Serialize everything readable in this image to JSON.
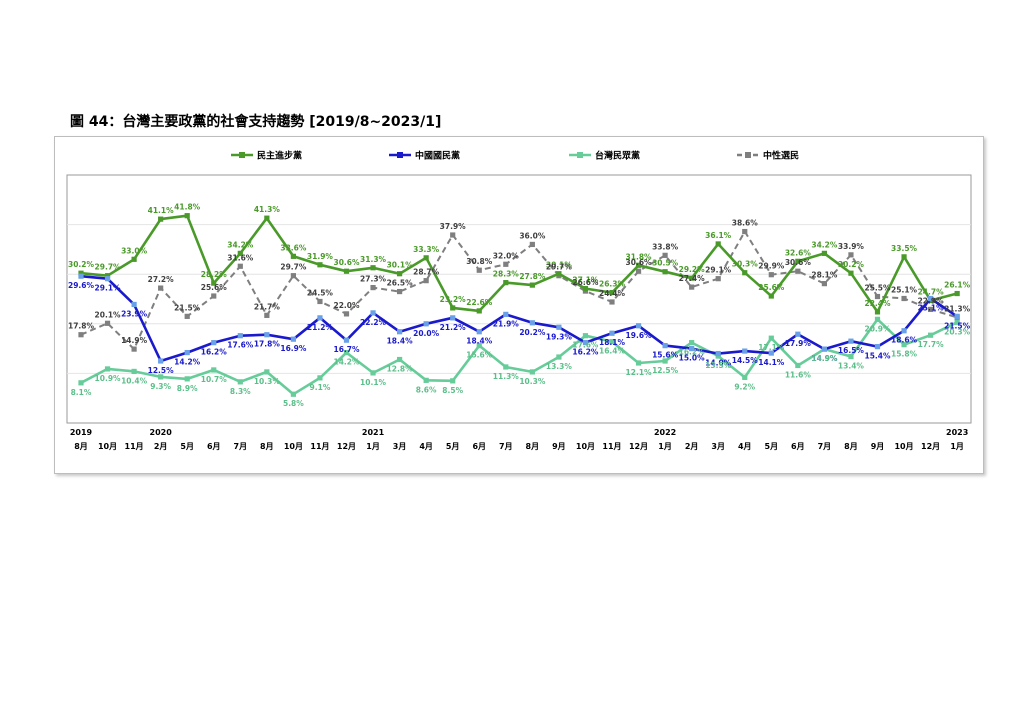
{
  "figure_title": "圖 44：台灣主要政黨的社會支持趨勢 [2019/8~2023/1]",
  "chart_data": {
    "type": "line",
    "categories": [
      {
        "year": "2019",
        "month": "8月"
      },
      {
        "year": "",
        "month": "10月"
      },
      {
        "year": "",
        "month": "11月"
      },
      {
        "year": "2020",
        "month": "2月"
      },
      {
        "year": "",
        "month": "5月"
      },
      {
        "year": "",
        "month": "6月"
      },
      {
        "year": "",
        "month": "7月"
      },
      {
        "year": "",
        "month": "8月"
      },
      {
        "year": "",
        "month": "10月"
      },
      {
        "year": "",
        "month": "11月"
      },
      {
        "year": "",
        "month": "12月"
      },
      {
        "year": "2021",
        "month": "1月"
      },
      {
        "year": "",
        "month": "3月"
      },
      {
        "year": "",
        "month": "4月"
      },
      {
        "year": "",
        "month": "5月"
      },
      {
        "year": "",
        "month": "6月"
      },
      {
        "year": "",
        "month": "7月"
      },
      {
        "year": "",
        "month": "8月"
      },
      {
        "year": "",
        "month": "9月"
      },
      {
        "year": "",
        "month": "10月"
      },
      {
        "year": "",
        "month": "11月"
      },
      {
        "year": "",
        "month": "12月"
      },
      {
        "year": "2022",
        "month": "1月"
      },
      {
        "year": "",
        "month": "2月"
      },
      {
        "year": "",
        "month": "3月"
      },
      {
        "year": "",
        "month": "4月"
      },
      {
        "year": "",
        "month": "5月"
      },
      {
        "year": "",
        "month": "6月"
      },
      {
        "year": "",
        "month": "7月"
      },
      {
        "year": "",
        "month": "8月"
      },
      {
        "year": "",
        "month": "9月"
      },
      {
        "year": "",
        "month": "10月"
      },
      {
        "year": "",
        "month": "12月"
      },
      {
        "year": "2023",
        "month": "1月"
      }
    ],
    "ylim": [
      0,
      50
    ],
    "grid": true,
    "legend_position": "top",
    "series": [
      {
        "name": "民主進步黨",
        "color": "#4a9a2a",
        "dash": "solid",
        "values": [
          30.2,
          29.7,
          33.0,
          41.1,
          41.8,
          28.2,
          34.2,
          41.3,
          33.6,
          31.9,
          30.6,
          31.3,
          30.1,
          33.3,
          23.2,
          22.6,
          28.3,
          27.8,
          30.1,
          27.1,
          26.3,
          31.8,
          30.5,
          29.2,
          36.1,
          30.3,
          25.6,
          32.6,
          34.2,
          30.2,
          22.4,
          33.5,
          24.7,
          26.1
        ],
        "labels": [
          "30.2%",
          "29.7%",
          "33.0%",
          "41.1%",
          "41.8%",
          "28.2%",
          "34.2%",
          "41.3%",
          "33.6%",
          "31.9%",
          "30.6%",
          "31.3%",
          "30.1%",
          "33.3%",
          "23.2%",
          "22.6%",
          "28.3%",
          "27.8%",
          "30.1%",
          "27.1%",
          "26.3%",
          "31.8%",
          "30.5%",
          "29.2%",
          "36.1%",
          "30.3%",
          "25.6%",
          "32.6%",
          "34.2%",
          "30.2%",
          "22.4%",
          "33.5%",
          "24.7%",
          "26.1%"
        ]
      },
      {
        "name": "中國國民黨",
        "color": "#1a1acc",
        "dash": "solid",
        "values": [
          29.6,
          29.1,
          23.9,
          12.5,
          14.2,
          16.2,
          17.6,
          17.8,
          16.9,
          21.2,
          16.7,
          22.2,
          18.4,
          20.0,
          21.2,
          18.4,
          21.9,
          20.2,
          19.3,
          16.2,
          18.1,
          19.6,
          15.6,
          15.0,
          14.0,
          14.5,
          14.1,
          17.9,
          14.9,
          16.5,
          15.4,
          18.6,
          25.1,
          21.5
        ],
        "labels": [
          "29.6%",
          "29.1%",
          "23.9%",
          "12.5%",
          "14.2%",
          "16.2%",
          "17.6%",
          "17.8%",
          "16.9%",
          "21.2%",
          "16.7%",
          "22.2%",
          "18.4%",
          "20.0%",
          "21.2%",
          "18.4%",
          "21.9%",
          "20.2%",
          "19.3%",
          "16.2%",
          "18.1%",
          "19.6%",
          "15.6%",
          "15.0%",
          "14.0%",
          "14.5%",
          "14.1%",
          "17.9%",
          "14.9%",
          "16.5%",
          "15.4%",
          "18.6%",
          "25.1%",
          "21.5%"
        ]
      },
      {
        "name": "台灣民眾黨",
        "color": "#66cc99",
        "dash": "solid",
        "values": [
          8.1,
          10.9,
          10.4,
          9.3,
          8.9,
          10.7,
          8.3,
          10.3,
          5.8,
          9.1,
          14.2,
          10.1,
          12.8,
          8.6,
          8.5,
          15.6,
          11.3,
          10.3,
          13.3,
          17.6,
          16.4,
          12.1,
          12.5,
          16.2,
          13.5,
          9.2,
          17.1,
          11.6,
          14.9,
          13.4,
          20.9,
          15.8,
          17.7,
          20.3
        ],
        "labels": [
          "8.1%",
          "10.9%",
          "10.4%",
          "9.3%",
          "8.9%",
          "10.7%",
          "8.3%",
          "10.3%",
          "5.8%",
          "9.1%",
          "14.2%",
          "10.1%",
          "12.8%",
          "8.6%",
          "8.5%",
          "15.6%",
          "11.3%",
          "10.3%",
          "13.3%",
          "17.6%",
          "16.4%",
          "12.1%",
          "12.5%",
          "16.2%",
          "13.5%",
          "9.2%",
          "17.1%",
          "11.6%",
          "14.9%",
          "13.4%",
          "20.9%",
          "15.8%",
          "17.7%",
          "20.3%"
        ]
      },
      {
        "name": "中性選民",
        "color": "#7f7f7f",
        "dash": "dashed",
        "values": [
          17.8,
          20.1,
          14.9,
          27.2,
          21.5,
          25.6,
          31.6,
          21.7,
          29.7,
          24.5,
          22.0,
          27.3,
          26.5,
          28.7,
          37.9,
          30.8,
          32.0,
          36.0,
          29.7,
          26.6,
          24.4,
          30.6,
          33.8,
          27.4,
          29.1,
          38.6,
          29.9,
          30.6,
          28.1,
          33.9,
          25.5,
          25.1,
          22.9,
          21.3
        ],
        "labels": [
          "17.8%",
          "20.1%",
          "14.9%",
          "27.2%",
          "21.5%",
          "25.6%",
          "31.6%",
          "21.7%",
          "29.7%",
          "24.5%",
          "22.0%",
          "27.3%",
          "26.5%",
          "28.7%",
          "37.9%",
          "30.8%",
          "32.0%",
          "36.0%",
          "29.7%",
          "26.6%",
          "24.4%",
          "30.6%",
          "33.8%",
          "27.4%",
          "29.1%",
          "38.6%",
          "29.9%",
          "30.6%",
          "28.1%",
          "33.9%",
          "25.5%",
          "25.1%",
          "22.9%",
          "21.3%"
        ]
      }
    ]
  }
}
